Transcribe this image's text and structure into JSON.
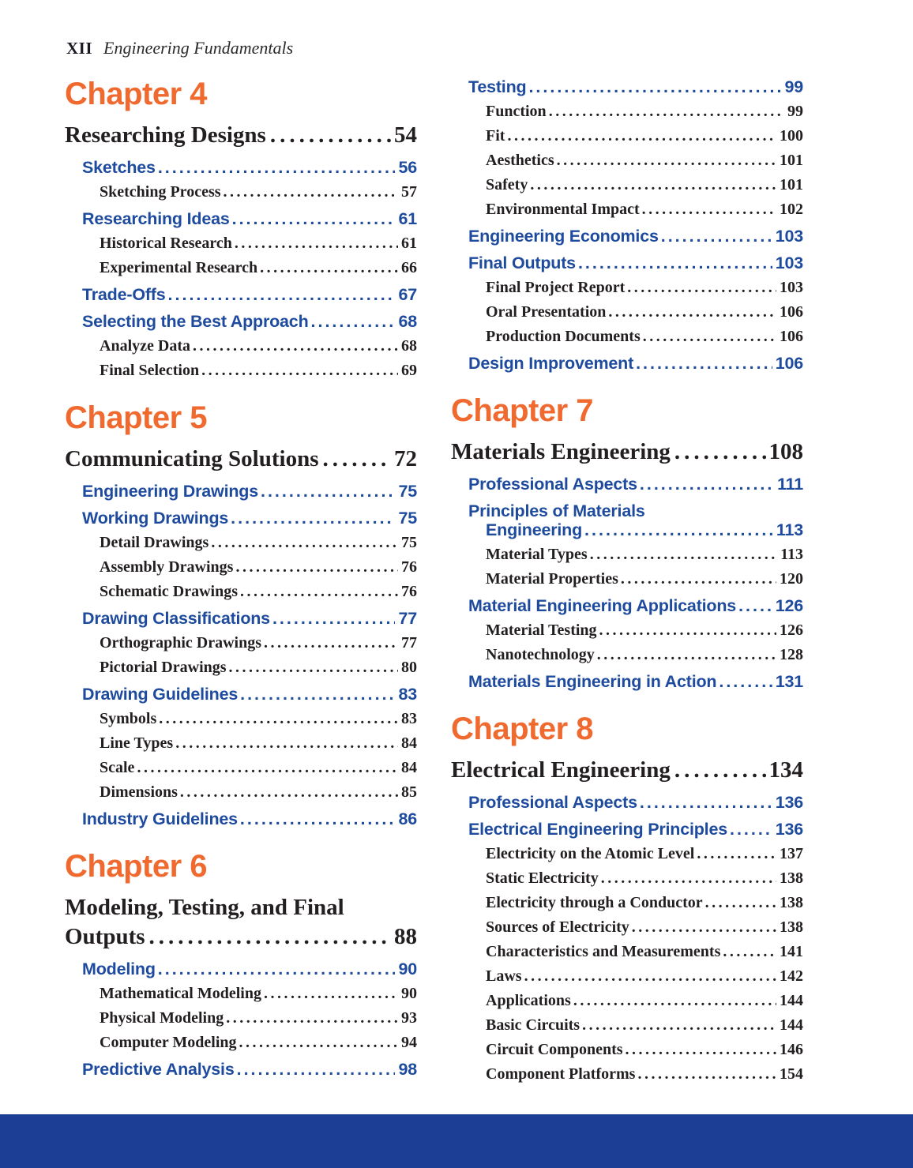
{
  "page_header": {
    "page_number": "XII",
    "book_title": "Engineering Fundamentals"
  },
  "colors": {
    "chapter_orange": "#F06A2F",
    "heading_blue": "#1E4B9E",
    "footer_blue": "#1C3E94",
    "text_dark": "#231F20"
  },
  "toc": {
    "columns": [
      {
        "entries": [
          {
            "t": "chapter",
            "text": "Chapter 4"
          },
          {
            "t": "title",
            "text": "Researching Designs",
            "page": "54"
          },
          {
            "t": "section",
            "text": "Sketches",
            "page": "56"
          },
          {
            "t": "sub",
            "text": "Sketching Process",
            "page": "57"
          },
          {
            "t": "section",
            "text": "Researching Ideas",
            "page": "61"
          },
          {
            "t": "sub",
            "text": "Historical Research",
            "page": "61"
          },
          {
            "t": "sub",
            "text": "Experimental Research",
            "page": "66"
          },
          {
            "t": "section",
            "text": "Trade-Offs",
            "page": "67"
          },
          {
            "t": "section",
            "text": "Selecting the Best Approach",
            "page": "68"
          },
          {
            "t": "sub",
            "text": "Analyze Data",
            "page": "68"
          },
          {
            "t": "sub",
            "text": "Final Selection",
            "page": "69"
          },
          {
            "t": "chapter",
            "text": "Chapter 5"
          },
          {
            "t": "title",
            "text": "Communicating Solutions",
            "page": "72"
          },
          {
            "t": "section",
            "text": "Engineering Drawings",
            "page": "75"
          },
          {
            "t": "section",
            "text": "Working Drawings",
            "page": "75"
          },
          {
            "t": "sub",
            "text": "Detail Drawings",
            "page": "75"
          },
          {
            "t": "sub",
            "text": "Assembly Drawings",
            "page": "76"
          },
          {
            "t": "sub",
            "text": "Schematic Drawings",
            "page": "76"
          },
          {
            "t": "section",
            "text": "Drawing Classifications",
            "page": "77"
          },
          {
            "t": "sub",
            "text": "Orthographic Drawings",
            "page": "77"
          },
          {
            "t": "sub",
            "text": "Pictorial Drawings",
            "page": "80"
          },
          {
            "t": "section",
            "text": "Drawing Guidelines",
            "page": "83"
          },
          {
            "t": "sub",
            "text": "Symbols",
            "page": "83"
          },
          {
            "t": "sub",
            "text": "Line Types",
            "page": "84"
          },
          {
            "t": "sub",
            "text": "Scale",
            "page": "84"
          },
          {
            "t": "sub",
            "text": "Dimensions",
            "page": "85"
          },
          {
            "t": "section",
            "text": "Industry Guidelines",
            "page": "86"
          },
          {
            "t": "chapter",
            "text": "Chapter 6"
          },
          {
            "t": "title2",
            "lines": [
              "Modeling, Testing, and Final",
              "Outputs"
            ],
            "page": "88"
          },
          {
            "t": "section",
            "text": "Modeling",
            "page": "90"
          },
          {
            "t": "sub",
            "text": "Mathematical Modeling",
            "page": "90"
          },
          {
            "t": "sub",
            "text": "Physical Modeling",
            "page": "93"
          },
          {
            "t": "sub",
            "text": "Computer Modeling",
            "page": "94"
          },
          {
            "t": "section",
            "text": "Predictive Analysis",
            "page": "98"
          }
        ]
      },
      {
        "entries": [
          {
            "t": "section",
            "text": "Testing",
            "page": "99"
          },
          {
            "t": "sub",
            "text": "Function",
            "page": "99"
          },
          {
            "t": "sub",
            "text": "Fit",
            "page": "100"
          },
          {
            "t": "sub",
            "text": "Aesthetics",
            "page": "101"
          },
          {
            "t": "sub",
            "text": "Safety",
            "page": "101"
          },
          {
            "t": "sub",
            "text": "Environmental Impact",
            "page": "102"
          },
          {
            "t": "section",
            "text": "Engineering Economics",
            "page": "103"
          },
          {
            "t": "section",
            "text": "Final Outputs",
            "page": "103"
          },
          {
            "t": "sub",
            "text": "Final Project Report",
            "page": "103"
          },
          {
            "t": "sub",
            "text": "Oral Presentation",
            "page": "106"
          },
          {
            "t": "sub",
            "text": "Production Documents",
            "page": "106"
          },
          {
            "t": "section",
            "text": "Design Improvement",
            "page": "106"
          },
          {
            "t": "chapter",
            "text": "Chapter 7"
          },
          {
            "t": "title",
            "text": "Materials Engineering",
            "page": "108"
          },
          {
            "t": "section",
            "text": "Professional Aspects",
            "page": "111"
          },
          {
            "t": "section2",
            "lines": [
              "Principles of Materials",
              "Engineering"
            ],
            "page": "113"
          },
          {
            "t": "sub",
            "text": "Material Types",
            "page": "113"
          },
          {
            "t": "sub",
            "text": "Material Properties",
            "page": "120"
          },
          {
            "t": "section",
            "text": "Material Engineering Applications",
            "page": "126"
          },
          {
            "t": "sub",
            "text": "Material Testing",
            "page": "126"
          },
          {
            "t": "sub",
            "text": "Nanotechnology",
            "page": "128"
          },
          {
            "t": "section",
            "text": "Materials Engineering in Action",
            "page": "131"
          },
          {
            "t": "chapter",
            "text": "Chapter 8"
          },
          {
            "t": "title",
            "text": "Electrical Engineering",
            "page": "134"
          },
          {
            "t": "section",
            "text": "Professional Aspects",
            "page": "136"
          },
          {
            "t": "section",
            "text": "Electrical Engineering Principles",
            "page": "136"
          },
          {
            "t": "sub",
            "text": "Electricity on the Atomic Level",
            "page": "137"
          },
          {
            "t": "sub",
            "text": "Static Electricity",
            "page": "138"
          },
          {
            "t": "sub",
            "text": "Electricity through a Conductor",
            "page": "138"
          },
          {
            "t": "sub",
            "text": "Sources of Electricity",
            "page": "138"
          },
          {
            "t": "sub",
            "text": "Characteristics and Measurements",
            "page": "141"
          },
          {
            "t": "sub",
            "text": "Laws",
            "page": "142"
          },
          {
            "t": "sub",
            "text": "Applications",
            "page": "144"
          },
          {
            "t": "sub",
            "text": "Basic Circuits",
            "page": "144"
          },
          {
            "t": "sub",
            "text": "Circuit Components",
            "page": "146"
          },
          {
            "t": "sub",
            "text": "Component Platforms",
            "page": "154"
          }
        ]
      }
    ]
  }
}
